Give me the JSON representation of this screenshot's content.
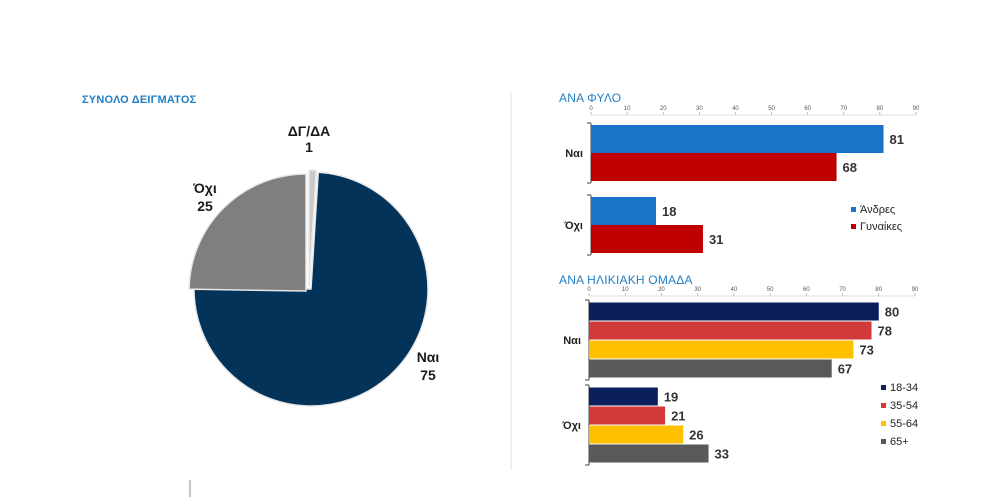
{
  "titles": {
    "total": "ΣΥΝΟΛΟ ΔΕΙΓΜΑΤΟΣ",
    "gender": "ΑΝΑ ΦΥΛΟ",
    "age": "ΑΝΑ ΗΛΙΚΙΑΚΗ ΟΜΑΔΑ"
  },
  "chart_data": [
    {
      "type": "pie",
      "title": "ΣΥΝΟΛΟ ΔΕΙΓΜΑΤΟΣ",
      "labels": [
        "Ναι",
        "Όχι",
        "ΔΓ/ΔΑ"
      ],
      "values": [
        75,
        25,
        1
      ],
      "colors": [
        "#033358",
        "#7f7f7f",
        "#c8c8c8"
      ]
    },
    {
      "type": "bar",
      "orientation": "horizontal",
      "title": "ΑΝΑ ΦΥΛΟ",
      "categories": [
        "Ναι",
        "Όχι"
      ],
      "series": [
        {
          "name": "Άνδρες",
          "values": [
            81,
            18
          ],
          "color": "#1a73c8"
        },
        {
          "name": "Γυναίκες",
          "values": [
            68,
            31
          ],
          "color": "#c00000"
        }
      ],
      "xlim": [
        0,
        90
      ],
      "ticks": [
        0,
        10,
        20,
        30,
        40,
        50,
        60,
        70,
        80,
        90
      ],
      "legend": "right"
    },
    {
      "type": "bar",
      "orientation": "horizontal",
      "title": "ΑΝΑ ΗΛΙΚΙΑΚΗ ΟΜΑΔΑ",
      "categories": [
        "Ναι",
        "Όχι"
      ],
      "series": [
        {
          "name": "18-34",
          "values": [
            80,
            19
          ],
          "color": "#0b1f5c"
        },
        {
          "name": "35-54",
          "values": [
            78,
            21
          ],
          "color": "#d03a3a"
        },
        {
          "name": "55-64",
          "values": [
            73,
            26
          ],
          "color": "#ffc000"
        },
        {
          "name": "65+",
          "values": [
            67,
            33
          ],
          "color": "#595959"
        }
      ],
      "xlim": [
        0,
        90
      ],
      "ticks": [
        0,
        10,
        20,
        30,
        40,
        50,
        60,
        70,
        80,
        90
      ],
      "legend": "right"
    }
  ]
}
